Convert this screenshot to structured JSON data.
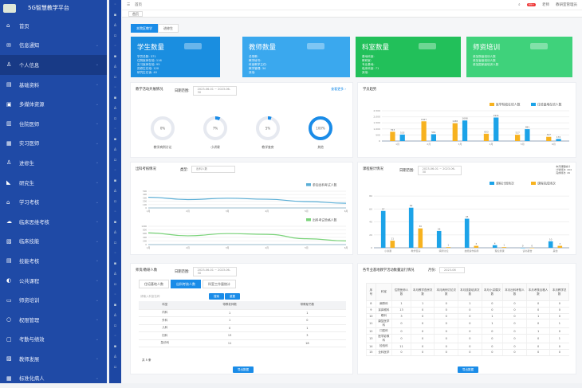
{
  "app": {
    "title": "5G智慧教学平台"
  },
  "sidebar": {
    "items": [
      {
        "label": "首页",
        "icon": "home-icon",
        "glyph": "⌂"
      },
      {
        "label": "信息通知",
        "icon": "mail-icon",
        "glyph": "✉",
        "chevron": true
      },
      {
        "label": "个人信息",
        "icon": "user-icon",
        "glyph": "♙",
        "chevron": true,
        "active": true
      },
      {
        "label": "基础资料",
        "icon": "folder-icon",
        "glyph": "▤",
        "chevron": true
      },
      {
        "label": "多媒体资源",
        "icon": "media-icon",
        "glyph": "▣",
        "chevron": true
      },
      {
        "label": "住院医师",
        "icon": "book-icon",
        "glyph": "▥",
        "chevron": true
      },
      {
        "label": "实习医师",
        "icon": "grid-icon",
        "glyph": "▦",
        "chevron": true
      },
      {
        "label": "进修生",
        "icon": "person-icon",
        "glyph": "♙",
        "chevron": true
      },
      {
        "label": "研究生",
        "icon": "cap-icon",
        "glyph": "◣",
        "chevron": true
      },
      {
        "label": "学习考核",
        "icon": "exam-icon",
        "glyph": "⌂",
        "chevron": true
      },
      {
        "label": "临床思维考核",
        "icon": "cloud-icon",
        "glyph": "☁",
        "chevron": true
      },
      {
        "label": "临床技能",
        "icon": "skill-icon",
        "glyph": "▧",
        "chevron": true
      },
      {
        "label": "技能考核",
        "icon": "clipboard-icon",
        "glyph": "▤",
        "chevron": true
      },
      {
        "label": "公共课程",
        "icon": "course-icon",
        "glyph": "◐",
        "chevron": true
      },
      {
        "label": "师资培训",
        "icon": "screen-icon",
        "glyph": "▭",
        "chevron": true
      },
      {
        "label": "权限管理",
        "icon": "gear-icon",
        "glyph": "○",
        "chevron": true
      },
      {
        "label": "考勤与绩效",
        "icon": "calendar-icon",
        "glyph": "▢",
        "chevron": true
      },
      {
        "label": "教师发展",
        "icon": "teacher-icon",
        "glyph": "▨",
        "chevron": true
      },
      {
        "label": "标准化病人",
        "icon": "apps-icon",
        "glyph": "▦",
        "chevron": true
      }
    ]
  },
  "topbar": {
    "breadcrumb": "首页",
    "notice_count": "99+",
    "user": "老师",
    "role": "教研室管理员"
  },
  "tabs": {
    "home": "首页"
  },
  "view_buttons": [
    "本院区教学",
    "进修生"
  ],
  "cards": [
    {
      "title": "学生数量",
      "lines": [
        "学员总数: 371",
        "住院医师在培: 116",
        "实习医师在培: 95",
        "进修生在培: 120",
        "研究生在读: 40"
      ],
      "color": "#1a8ee0"
    },
    {
      "title": "教师数量",
      "lines": [
        "总带教: ",
        "教学秘书: ",
        "科室教学主任: ",
        "教学管理: 34",
        "其他: "
      ],
      "color": "#3aa8ee"
    },
    {
      "title": "科室数量",
      "lines": [
        "基地科室: ",
        "教研室: ",
        "专业基地: ",
        "临床科室: 71",
        "其他: "
      ],
      "color": "#22c05a"
    },
    {
      "title": "师资培训",
      "lines": [
        "参加院级培训人数",
        "参加省级培训人数",
        "参加国家级培训人数"
      ],
      "color": "#3fd27b"
    }
  ],
  "activity": {
    "title": "教学活动开展情况",
    "range_label": "日期范围:",
    "start": "2023-06-01",
    "end": "2023-06-30",
    "more": "查看更多 ›",
    "donuts": [
      {
        "label": "教学病例讨论",
        "percent": 0
      },
      {
        "label": "小讲课",
        "percent": 7
      },
      {
        "label": "教学查房",
        "percent": 5
      },
      {
        "label": "其他",
        "percent": 100
      }
    ]
  },
  "chart_data": [
    {
      "type": "bar",
      "title": "学员趋势",
      "categories": [
        "1月",
        "2月",
        "3月",
        "4月",
        "5月",
        "6月"
      ],
      "ylim": [
        0,
        2500
      ],
      "yticks": [
        0,
        500,
        1000,
        1500,
        2000,
        2500
      ],
      "series": [
        {
          "name": "医学院校在培人数",
          "color": "#f7b21f",
          "values": [
            763,
            1627,
            1465,
            603,
            517,
            347
          ]
        },
        {
          "name": "住培基地在培人数",
          "color": "#1ca3e8",
          "values": [
            533,
            561,
            1698,
            1941,
            981,
            172
          ]
        }
      ]
    },
    {
      "type": "line",
      "title": "出科考核情况",
      "series": [
        {
          "name": "参加出科考试人数",
          "color": "#5aaed6",
          "categories": [
            "1月",
            "2月",
            "3月",
            "4月",
            "5月",
            "6月"
          ],
          "ylim": [
            0,
            500
          ],
          "yticks": [
            0,
            100,
            200,
            300,
            400,
            500
          ],
          "values": [
            320,
            250,
            290,
            260,
            190,
            140
          ]
        },
        {
          "name": "出科考试合格人数",
          "color": "#7ad37a",
          "categories": [
            "1月",
            "2月",
            "3月",
            "4月",
            "5月",
            "6月"
          ],
          "ylim": [
            0,
            1000
          ],
          "yticks": [
            0,
            200,
            400,
            600,
            800,
            1000
          ],
          "values": [
            640,
            480,
            600,
            560,
            320,
            200
          ]
        }
      ]
    },
    {
      "type": "bar",
      "title": "课程统计情况",
      "categories": [
        "小讲课",
        "教学查房",
        "病例讨论",
        "技能操作指导",
        "理论授课",
        "读书报告",
        "其他"
      ],
      "ylim": [
        0,
        90
      ],
      "yticks": [
        0,
        20,
        40,
        60,
        80
      ],
      "series": [
        {
          "name": "课程计划场次",
          "color": "#1ca3e8",
          "values": [
            57,
            62,
            26,
            45,
            4,
            0,
            10
          ]
        },
        {
          "name": "课程完成场次",
          "color": "#f7b21f",
          "values": [
            11,
            30,
            1,
            3,
            1,
            0,
            3
          ]
        }
      ]
    }
  ],
  "exam": {
    "filter_label": "类型:",
    "filter_value": "出科人数"
  },
  "course": {
    "range_label": "日期范围:",
    "start": "2023-06-01",
    "end": "2023-06-30",
    "summary": [
      "本月课程统计",
      "计划场次: 204",
      "完成场次: 49"
    ]
  },
  "people": {
    "title": "师资/教研人数",
    "range_label": "日期范围:",
    "start": "2023-06-01",
    "end": "2023-06-30",
    "subtabs": [
      "住培基地人数",
      "出科考核人数",
      "科室工作量统计"
    ],
    "search_placeholder": "请输入科室名称",
    "search_btn": "搜索",
    "reset_btn": "重置",
    "columns": [
      "科室",
      "带教老师数",
      "带教秘书数"
    ],
    "rows": [
      [
        "内科",
        "1",
        "1"
      ],
      [
        "外科",
        "1",
        "0"
      ],
      [
        "儿科",
        "0",
        "1"
      ],
      [
        "妇科",
        "13",
        "3"
      ],
      [
        "急诊科",
        "11",
        "18"
      ]
    ],
    "total_label": "共 5 条",
    "export": "导出数据"
  },
  "dept": {
    "title": "各专业基地教学活动数量运行情况",
    "month_label": "月份:",
    "month": "2023-06",
    "columns": [
      "序号",
      "科室",
      "住院医师人数",
      "本月教学查房次数",
      "本月病例讨论次数",
      "本月技能培训次数",
      "本月小讲课次数",
      "本月出科考核人数",
      "本月考核合格人数",
      "本月教学总数"
    ],
    "rows": [
      [
        "8",
        "麻醉科",
        "1",
        "1",
        "0",
        "1",
        "0",
        "0",
        "0",
        "0"
      ],
      [
        "9",
        "耳鼻喉科",
        "13",
        "0",
        "0",
        "0",
        "0",
        "0",
        "0",
        "0"
      ],
      [
        "10",
        "眼科",
        "3",
        "0",
        "0",
        "0",
        "1",
        "0",
        "1",
        "0"
      ],
      [
        "11",
        "康复医学科",
        "0",
        "0",
        "0",
        "0",
        "1",
        "0",
        "0",
        "1"
      ],
      [
        "12",
        "口腔科",
        "0",
        "0",
        "0",
        "0",
        "0",
        "0",
        "1",
        "0"
      ],
      [
        "13",
        "医学影像科",
        "0",
        "0",
        "0",
        "0",
        "0",
        "0",
        "0",
        "1"
      ],
      [
        "14",
        "检验科",
        "11",
        "0",
        "0",
        "0",
        "0",
        "0",
        "0",
        "0"
      ],
      [
        "15",
        "全科医学",
        "0",
        "0",
        "0",
        "0",
        "0",
        "0",
        "0",
        "0"
      ]
    ],
    "export": "导出数据"
  }
}
